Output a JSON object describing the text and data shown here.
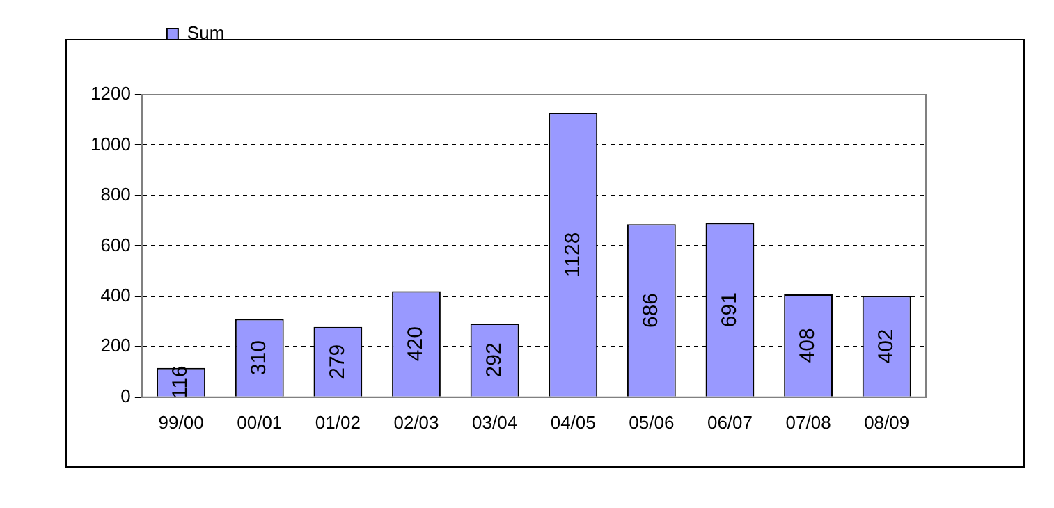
{
  "chart_data": {
    "type": "bar",
    "categories": [
      "99/00",
      "00/01",
      "01/02",
      "02/03",
      "03/04",
      "04/05",
      "05/06",
      "06/07",
      "07/08",
      "08/09"
    ],
    "series": [
      {
        "name": "Sum",
        "color": "#9999ff",
        "values": [
          116,
          310,
          279,
          420,
          292,
          1128,
          686,
          691,
          408,
          402
        ]
      }
    ],
    "ylim": [
      0,
      1200
    ],
    "yticks": [
      0,
      200,
      400,
      600,
      800,
      1000,
      1200
    ],
    "grid": "y",
    "legend": "top left",
    "data_labels": true
  }
}
